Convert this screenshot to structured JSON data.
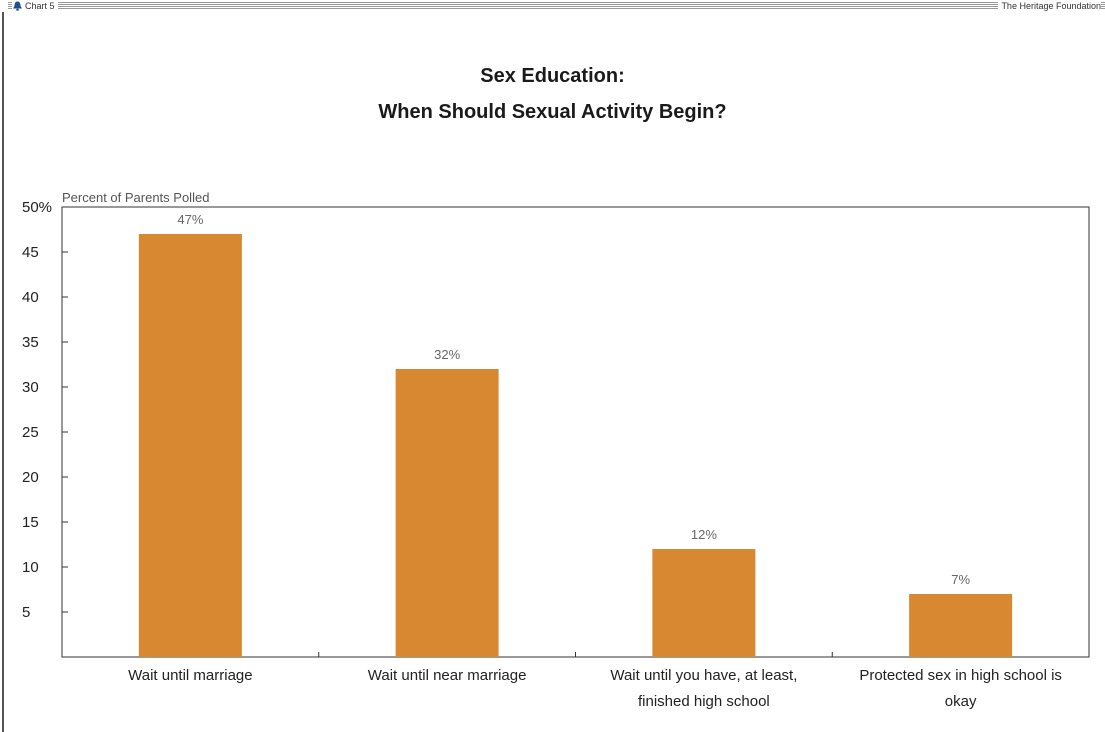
{
  "header": {
    "chart_number": "Chart 5",
    "source": "The Heritage Foundation",
    "icon": "bell-icon"
  },
  "colors": {
    "bar": "#d98832",
    "axis": "#333333"
  },
  "chart_data": {
    "type": "bar",
    "title": "Sex Education:",
    "subtitle": "When Should Sexual Activity Begin?",
    "ylabel": "Percent of Parents Polled",
    "xlabel": "",
    "ylim": [
      0,
      50
    ],
    "yticks": [
      5,
      10,
      15,
      20,
      25,
      30,
      35,
      40,
      45,
      50
    ],
    "ytick_labels": [
      "5",
      "10",
      "15",
      "20",
      "25",
      "30",
      "35",
      "40",
      "45",
      "50%"
    ],
    "categories": [
      [
        "Wait until marriage"
      ],
      [
        "Wait until near marriage"
      ],
      [
        "Wait until you have, at least,",
        "finished high school"
      ],
      [
        "Protected sex in high school is",
        "okay"
      ]
    ],
    "values": [
      47,
      32,
      12,
      7
    ],
    "value_labels": [
      "47%",
      "32%",
      "12%",
      "7%"
    ],
    "grid": false,
    "legend": "none"
  }
}
